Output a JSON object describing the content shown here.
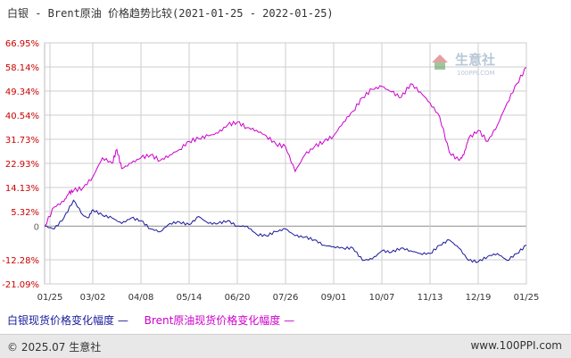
{
  "title": "白银 - Brent原油 价格趋势比较(2021-01-25 - 2022-01-25)",
  "watermark": {
    "text": "生意社",
    "subtext": "100PPI.COM"
  },
  "legend": {
    "silver": "白银现货价格变化幅度",
    "silver_line": "—",
    "brent": "Brent原油现货价格变化幅度",
    "brent_line": "—"
  },
  "footer": {
    "left": "© 2025.07 生意社",
    "right": "www.100PPI.com"
  },
  "colors": {
    "silver": "#1a1a9a",
    "brent": "#cc00cc",
    "grid": "#cccccc",
    "zero": "#999999",
    "axis_text": "#cc0000",
    "date_text": "#333333"
  },
  "chart_data": {
    "type": "line",
    "ylim": [
      -21.09,
      66.95
    ],
    "yticks": [
      66.95,
      58.14,
      49.34,
      40.54,
      31.73,
      22.93,
      14.13,
      5.32,
      0,
      -12.28,
      -21.09
    ],
    "ytick_labels": [
      "66.95%",
      "58.14%",
      "49.34%",
      "40.54%",
      "31.73%",
      "22.93%",
      "14.13%",
      "5.32%",
      "0",
      "-12.28%",
      "-21.09%"
    ],
    "xticks": [
      "01/25",
      "03/02",
      "04/08",
      "05/14",
      "06/20",
      "07/26",
      "09/01",
      "10/07",
      "11/13",
      "12/19",
      "01/25"
    ],
    "grid": true,
    "series": [
      {
        "name": "白银现货价格变化幅度",
        "color": "#1a1a9a",
        "x": [
          0,
          2,
          4,
          6,
          8,
          9,
          10,
          12,
          14,
          16,
          18,
          20,
          22,
          24,
          26,
          28,
          30,
          32,
          34,
          36,
          38,
          40,
          42,
          44,
          46,
          48,
          50,
          52,
          54,
          56,
          58,
          60,
          62,
          64,
          66,
          68,
          70,
          72,
          74,
          76,
          78,
          80,
          82,
          84,
          86,
          88,
          90,
          92,
          94,
          96,
          98,
          100
        ],
        "y": [
          0,
          -1,
          3,
          9.5,
          4,
          3,
          6,
          4,
          3,
          1,
          3,
          2,
          -1,
          -2,
          1,
          1.5,
          0.5,
          3.5,
          1,
          1,
          2,
          0,
          0,
          -3,
          -3.5,
          -2,
          -1,
          -3.5,
          -4,
          -5,
          -7,
          -7.5,
          -8,
          -8,
          -12.5,
          -12,
          -9,
          -9.5,
          -8,
          -9,
          -10,
          -10,
          -7,
          -5,
          -8,
          -12.5,
          -13,
          -11,
          -10,
          -12.5,
          -10,
          -7
        ]
      },
      {
        "name": "Brent原油现货价格变化幅度",
        "color": "#cc00cc",
        "x": [
          0,
          2,
          4,
          5,
          6,
          8,
          10,
          12,
          14,
          15,
          16,
          18,
          20,
          22,
          24,
          26,
          28,
          30,
          32,
          34,
          36,
          38,
          40,
          42,
          44,
          46,
          48,
          50,
          52,
          54,
          56,
          58,
          60,
          62,
          64,
          66,
          68,
          70,
          72,
          74,
          76,
          78,
          80,
          82,
          84,
          86,
          87,
          88,
          90,
          92,
          94,
          96,
          98,
          100
        ],
        "y": [
          0,
          7,
          9,
          12,
          13,
          14,
          18,
          25,
          23,
          28,
          21,
          23,
          25,
          26,
          24,
          26,
          28,
          31,
          32,
          33,
          34,
          37,
          38,
          36,
          35,
          33,
          30,
          29,
          20,
          26,
          29,
          31,
          33,
          38,
          42,
          47,
          50,
          51,
          49,
          47,
          52,
          49,
          45,
          40,
          27,
          24,
          26,
          32,
          35,
          31,
          37,
          45,
          52,
          58
        ]
      }
    ]
  }
}
